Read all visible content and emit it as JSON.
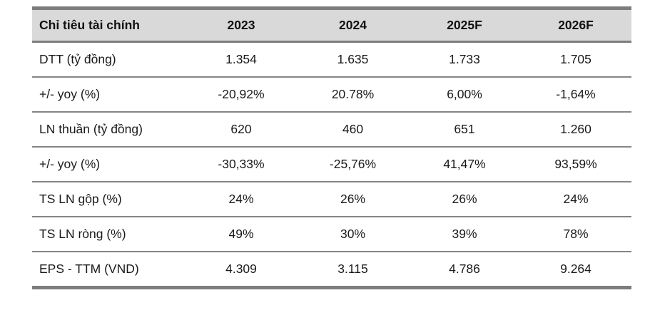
{
  "table": {
    "columns": [
      {
        "label": "Chỉ tiêu tài chính"
      },
      {
        "label": "2023"
      },
      {
        "label": "2024"
      },
      {
        "label": "2025F"
      },
      {
        "label": "2026F"
      }
    ],
    "rows": [
      {
        "label": "DTT (tỷ đồng)",
        "values": [
          "1.354",
          "1.635",
          "1.733",
          "1.705"
        ]
      },
      {
        "label": "+/- yoy (%)",
        "values": [
          "-20,92%",
          "20.78%",
          "6,00%",
          "-1,64%"
        ]
      },
      {
        "label": "LN thuần (tỷ đồng)",
        "values": [
          "620",
          "460",
          "651",
          "1.260"
        ]
      },
      {
        "label": "+/- yoy (%)",
        "values": [
          "-30,33%",
          "-25,76%",
          "41,47%",
          "93,59%"
        ]
      },
      {
        "label": "TS LN gộp (%)",
        "values": [
          "24%",
          "26%",
          "26%",
          "24%"
        ]
      },
      {
        "label": "TS LN ròng (%)",
        "values": [
          "49%",
          "30%",
          "39%",
          "78%"
        ]
      },
      {
        "label": "EPS - TTM (VND)",
        "values": [
          "4.309",
          "3.115",
          "4.786",
          "9.264"
        ]
      }
    ],
    "colors": {
      "header_bg": "#d9d9d9",
      "border": "#7d7d7d",
      "text": "#1a1a1a"
    }
  }
}
